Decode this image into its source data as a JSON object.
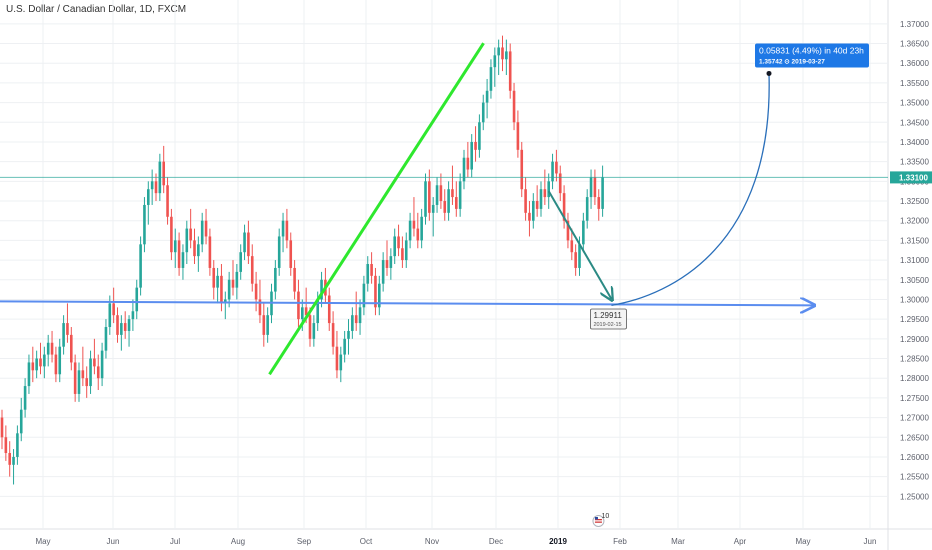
{
  "header": {
    "symbol_title": "U.S. Dollar / Canadian Dollar, 1D, FXCM"
  },
  "chart_data": {
    "type": "candlestick",
    "y_axis": {
      "min": 1.245,
      "max": 1.3725,
      "ticks": [
        "1.37000",
        "1.36500",
        "1.36000",
        "1.35500",
        "1.35000",
        "1.34500",
        "1.34000",
        "1.33500",
        "1.33000",
        "1.32500",
        "1.32000",
        "1.31500",
        "1.31000",
        "1.30500",
        "1.30000",
        "1.29500",
        "1.29000",
        "1.28500",
        "1.28000",
        "1.27500",
        "1.27000",
        "1.26500",
        "1.26000",
        "1.25500",
        "1.25000"
      ]
    },
    "x_axis": {
      "labels": [
        {
          "text": "May",
          "bold": false
        },
        {
          "text": "Jun",
          "bold": false
        },
        {
          "text": "Jul",
          "bold": false
        },
        {
          "text": "Aug",
          "bold": false
        },
        {
          "text": "Sep",
          "bold": false
        },
        {
          "text": "Oct",
          "bold": false
        },
        {
          "text": "Nov",
          "bold": false
        },
        {
          "text": "Dec",
          "bold": false
        },
        {
          "text": "2019",
          "bold": true
        },
        {
          "text": "Feb",
          "bold": false
        },
        {
          "text": "Mar",
          "bold": false
        },
        {
          "text": "Apr",
          "bold": false
        },
        {
          "text": "May",
          "bold": false
        },
        {
          "text": "Jun",
          "bold": false
        }
      ]
    },
    "price_line": {
      "value": 1.331,
      "label": "1.33100",
      "color": "#26a69a"
    },
    "candles": [
      [
        1.27,
        1.272,
        1.262,
        1.265
      ],
      [
        1.265,
        1.268,
        1.259,
        1.261
      ],
      [
        1.261,
        1.264,
        1.255,
        1.258
      ],
      [
        1.258,
        1.262,
        1.253,
        1.26
      ],
      [
        1.26,
        1.268,
        1.258,
        1.266
      ],
      [
        1.266,
        1.275,
        1.264,
        1.272
      ],
      [
        1.272,
        1.28,
        1.27,
        1.278
      ],
      [
        1.278,
        1.286,
        1.276,
        1.284
      ],
      [
        1.284,
        1.288,
        1.279,
        1.282
      ],
      [
        1.282,
        1.287,
        1.28,
        1.285
      ],
      [
        1.285,
        1.289,
        1.281,
        1.283
      ],
      [
        1.283,
        1.288,
        1.28,
        1.286
      ],
      [
        1.286,
        1.291,
        1.283,
        1.289
      ],
      [
        1.289,
        1.292,
        1.284,
        1.286
      ],
      [
        1.286,
        1.288,
        1.279,
        1.281
      ],
      [
        1.281,
        1.29,
        1.279,
        1.288
      ],
      [
        1.288,
        1.296,
        1.286,
        1.294
      ],
      [
        1.294,
        1.299,
        1.289,
        1.291
      ],
      [
        1.291,
        1.293,
        1.282,
        1.284
      ],
      [
        1.284,
        1.286,
        1.274,
        1.276
      ],
      [
        1.276,
        1.284,
        1.274,
        1.282
      ],
      [
        1.282,
        1.288,
        1.278,
        1.28
      ],
      [
        1.28,
        1.283,
        1.275,
        1.278
      ],
      [
        1.278,
        1.287,
        1.276,
        1.285
      ],
      [
        1.285,
        1.29,
        1.281,
        1.283
      ],
      [
        1.283,
        1.286,
        1.277,
        1.28
      ],
      [
        1.28,
        1.289,
        1.278,
        1.287
      ],
      [
        1.287,
        1.295,
        1.285,
        1.293
      ],
      [
        1.293,
        1.301,
        1.291,
        1.299
      ],
      [
        1.299,
        1.303,
        1.294,
        1.296
      ],
      [
        1.296,
        1.298,
        1.289,
        1.291
      ],
      [
        1.291,
        1.296,
        1.287,
        1.294
      ],
      [
        1.294,
        1.297,
        1.29,
        1.292
      ],
      [
        1.292,
        1.296,
        1.288,
        1.295
      ],
      [
        1.295,
        1.3,
        1.292,
        1.297
      ],
      [
        1.297,
        1.305,
        1.295,
        1.303
      ],
      [
        1.303,
        1.316,
        1.301,
        1.314
      ],
      [
        1.314,
        1.326,
        1.312,
        1.324
      ],
      [
        1.324,
        1.33,
        1.319,
        1.328
      ],
      [
        1.328,
        1.333,
        1.324,
        1.33
      ],
      [
        1.33,
        1.332,
        1.325,
        1.327
      ],
      [
        1.327,
        1.337,
        1.325,
        1.335
      ],
      [
        1.335,
        1.339,
        1.327,
        1.329
      ],
      [
        1.329,
        1.331,
        1.319,
        1.321
      ],
      [
        1.321,
        1.323,
        1.31,
        1.312
      ],
      [
        1.312,
        1.318,
        1.308,
        1.315
      ],
      [
        1.315,
        1.317,
        1.306,
        1.308
      ],
      [
        1.308,
        1.314,
        1.305,
        1.312
      ],
      [
        1.312,
        1.32,
        1.309,
        1.318
      ],
      [
        1.318,
        1.323,
        1.313,
        1.315
      ],
      [
        1.315,
        1.318,
        1.309,
        1.311
      ],
      [
        1.311,
        1.316,
        1.307,
        1.314
      ],
      [
        1.314,
        1.322,
        1.312,
        1.32
      ],
      [
        1.32,
        1.323,
        1.314,
        1.316
      ],
      [
        1.316,
        1.318,
        1.306,
        1.308
      ],
      [
        1.308,
        1.31,
        1.3,
        1.303
      ],
      [
        1.303,
        1.308,
        1.299,
        1.306
      ],
      [
        1.306,
        1.309,
        1.297,
        1.299
      ],
      [
        1.299,
        1.302,
        1.295,
        1.3
      ],
      [
        1.3,
        1.307,
        1.298,
        1.305
      ],
      [
        1.305,
        1.31,
        1.301,
        1.303
      ],
      [
        1.303,
        1.309,
        1.3,
        1.307
      ],
      [
        1.307,
        1.314,
        1.305,
        1.312
      ],
      [
        1.312,
        1.319,
        1.31,
        1.317
      ],
      [
        1.317,
        1.32,
        1.309,
        1.311
      ],
      [
        1.311,
        1.314,
        1.302,
        1.304
      ],
      [
        1.304,
        1.307,
        1.297,
        1.3
      ],
      [
        1.3,
        1.305,
        1.294,
        1.296
      ],
      [
        1.296,
        1.299,
        1.288,
        1.291
      ],
      [
        1.291,
        1.298,
        1.289,
        1.296
      ],
      [
        1.296,
        1.304,
        1.294,
        1.302
      ],
      [
        1.302,
        1.31,
        1.3,
        1.308
      ],
      [
        1.308,
        1.318,
        1.306,
        1.316
      ],
      [
        1.316,
        1.322,
        1.312,
        1.32
      ],
      [
        1.32,
        1.323,
        1.313,
        1.315
      ],
      [
        1.315,
        1.317,
        1.306,
        1.308
      ],
      [
        1.308,
        1.31,
        1.3,
        1.302
      ],
      [
        1.302,
        1.305,
        1.293,
        1.295
      ],
      [
        1.295,
        1.3,
        1.292,
        1.298
      ],
      [
        1.298,
        1.303,
        1.294,
        1.296
      ],
      [
        1.296,
        1.298,
        1.288,
        1.29
      ],
      [
        1.29,
        1.296,
        1.288,
        1.294
      ],
      [
        1.294,
        1.302,
        1.292,
        1.3
      ],
      [
        1.3,
        1.307,
        1.298,
        1.305
      ],
      [
        1.305,
        1.308,
        1.299,
        1.301
      ],
      [
        1.301,
        1.303,
        1.292,
        1.294
      ],
      [
        1.294,
        1.297,
        1.286,
        1.288
      ],
      [
        1.288,
        1.292,
        1.28,
        1.282
      ],
      [
        1.282,
        1.288,
        1.279,
        1.286
      ],
      [
        1.286,
        1.292,
        1.284,
        1.29
      ],
      [
        1.29,
        1.295,
        1.286,
        1.292
      ],
      [
        1.292,
        1.298,
        1.29,
        1.296
      ],
      [
        1.296,
        1.302,
        1.292,
        1.294
      ],
      [
        1.294,
        1.3,
        1.291,
        1.298
      ],
      [
        1.298,
        1.306,
        1.296,
        1.304
      ],
      [
        1.304,
        1.311,
        1.302,
        1.309
      ],
      [
        1.309,
        1.312,
        1.304,
        1.306
      ],
      [
        1.306,
        1.308,
        1.296,
        1.298
      ],
      [
        1.298,
        1.306,
        1.296,
        1.304
      ],
      [
        1.304,
        1.312,
        1.302,
        1.31
      ],
      [
        1.31,
        1.315,
        1.306,
        1.308
      ],
      [
        1.308,
        1.313,
        1.305,
        1.311
      ],
      [
        1.311,
        1.318,
        1.309,
        1.316
      ],
      [
        1.316,
        1.319,
        1.311,
        1.313
      ],
      [
        1.313,
        1.316,
        1.308,
        1.31
      ],
      [
        1.31,
        1.317,
        1.308,
        1.315
      ],
      [
        1.315,
        1.322,
        1.313,
        1.32
      ],
      [
        1.32,
        1.326,
        1.316,
        1.318
      ],
      [
        1.318,
        1.322,
        1.313,
        1.315
      ],
      [
        1.315,
        1.323,
        1.313,
        1.321
      ],
      [
        1.321,
        1.332,
        1.319,
        1.33
      ],
      [
        1.33,
        1.333,
        1.32,
        1.322
      ],
      [
        1.322,
        1.326,
        1.316,
        1.324
      ],
      [
        1.324,
        1.331,
        1.322,
        1.329
      ],
      [
        1.329,
        1.332,
        1.323,
        1.325
      ],
      [
        1.325,
        1.328,
        1.32,
        1.322
      ],
      [
        1.322,
        1.33,
        1.32,
        1.328
      ],
      [
        1.328,
        1.334,
        1.324,
        1.326
      ],
      [
        1.326,
        1.33,
        1.321,
        1.323
      ],
      [
        1.323,
        1.332,
        1.321,
        1.33
      ],
      [
        1.33,
        1.338,
        1.328,
        1.336
      ],
      [
        1.336,
        1.34,
        1.331,
        1.333
      ],
      [
        1.333,
        1.342,
        1.331,
        1.34
      ],
      [
        1.34,
        1.344,
        1.335,
        1.338
      ],
      [
        1.338,
        1.347,
        1.336,
        1.345
      ],
      [
        1.345,
        1.352,
        1.343,
        1.35
      ],
      [
        1.35,
        1.356,
        1.346,
        1.353
      ],
      [
        1.353,
        1.361,
        1.351,
        1.359
      ],
      [
        1.359,
        1.364,
        1.354,
        1.362
      ],
      [
        1.362,
        1.366,
        1.357,
        1.364
      ],
      [
        1.364,
        1.367,
        1.358,
        1.361
      ],
      [
        1.361,
        1.366,
        1.357,
        1.363
      ],
      [
        1.363,
        1.365,
        1.351,
        1.353
      ],
      [
        1.353,
        1.355,
        1.343,
        1.345
      ],
      [
        1.345,
        1.348,
        1.336,
        1.338
      ],
      [
        1.338,
        1.34,
        1.326,
        1.328
      ],
      [
        1.328,
        1.331,
        1.32,
        1.322
      ],
      [
        1.322,
        1.325,
        1.316,
        1.32
      ],
      [
        1.32,
        1.327,
        1.318,
        1.325
      ],
      [
        1.325,
        1.329,
        1.321,
        1.323
      ],
      [
        1.323,
        1.33,
        1.321,
        1.328
      ],
      [
        1.328,
        1.333,
        1.324,
        1.326
      ],
      [
        1.326,
        1.332,
        1.323,
        1.33
      ],
      [
        1.33,
        1.337,
        1.328,
        1.335
      ],
      [
        1.335,
        1.338,
        1.33,
        1.332
      ],
      [
        1.332,
        1.334,
        1.325,
        1.327
      ],
      [
        1.327,
        1.329,
        1.318,
        1.32
      ],
      [
        1.32,
        1.322,
        1.313,
        1.315
      ],
      [
        1.315,
        1.318,
        1.31,
        1.312
      ],
      [
        1.312,
        1.314,
        1.306,
        1.308
      ],
      [
        1.308,
        1.316,
        1.306,
        1.314
      ],
      [
        1.314,
        1.322,
        1.312,
        1.32
      ],
      [
        1.32,
        1.328,
        1.318,
        1.326
      ],
      [
        1.326,
        1.333,
        1.323,
        1.331
      ],
      [
        1.331,
        1.333,
        1.324,
        1.326
      ],
      [
        1.326,
        1.328,
        1.32,
        1.323
      ],
      [
        1.323,
        1.334,
        1.321,
        1.331
      ]
    ],
    "annotations": {
      "green_trendline": {
        "from": {
          "candle": 70,
          "price": 1.281
        },
        "to": {
          "candle": 123,
          "price": 1.36
        }
      },
      "horizontal_support_arrow": {
        "from": {
          "candle": 0,
          "price": 1.2995
        },
        "to": {
          "candle": 210,
          "price": 1.2985
        }
      },
      "drop_arrow": {
        "from": {
          "candle": 142,
          "price": 1.3275
        },
        "to": {
          "candle": 157,
          "price": 1.2991
        }
      },
      "projection_curve": {
        "from": {
          "candle": 157,
          "price": 1.2985
        },
        "to": {
          "candle": 200,
          "price": 1.3574
        }
      },
      "target_label": {
        "line1": "0.05831 (4.49%) in 40d 23h",
        "line2": "1.35742 ⊙ 2019-03-27",
        "anchor": {
          "candle": 200,
          "price": 1.3574
        }
      },
      "low_label": {
        "value": "1.29911",
        "date": "2019-02-15",
        "anchor": {
          "candle": 157,
          "price": 1.2991
        }
      },
      "earnings_badge": {
        "text": "10",
        "candle": 157
      }
    },
    "colors": {
      "up": "#26a69a",
      "down": "#ef5350",
      "trendline": "#2ee82e",
      "blue_line": "#5b8def",
      "target_box": "#1e78e6",
      "drop_arrow": "#2b8a84",
      "projection": "#2a6fba",
      "grid": "#eef0f3",
      "axis_text": "#5d606b"
    }
  }
}
